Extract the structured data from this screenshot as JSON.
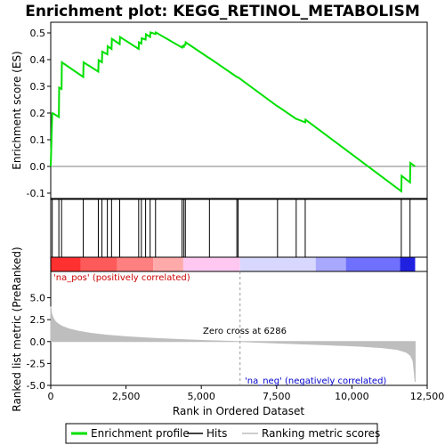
{
  "chart_data": {
    "type": "line",
    "title": "Enrichment plot: KEGG_RETINOL_METABOLISM",
    "xlabel": "Rank in Ordered Dataset",
    "ylabel_top": "Enrichment score (ES)",
    "ylabel_bottom": "Ranked list metric (PreRanked)",
    "xlim": [
      0,
      12500
    ],
    "x_ticks": [
      "0",
      "2,500",
      "5,000",
      "7,500",
      "10,000",
      "12,500"
    ],
    "x_tick_values": [
      0,
      2500,
      5000,
      7500,
      10000,
      12500
    ],
    "es_ylim": [
      -0.12,
      0.54
    ],
    "es_ticks": [
      "-0.1",
      "0.0",
      "0.1",
      "0.2",
      "0.3",
      "0.4",
      "0.5"
    ],
    "es_tick_values": [
      -0.1,
      0.0,
      0.1,
      0.2,
      0.3,
      0.4,
      0.5
    ],
    "metric_ylim": [
      -5,
      8
    ],
    "metric_ticks": [
      "-5.0",
      "-2.5",
      "0.0",
      "2.5",
      "5.0"
    ],
    "metric_tick_values": [
      -5,
      -2.5,
      0,
      2.5,
      5
    ],
    "n_genes": 12100,
    "enrichment_profile": {
      "name": "Enrichment profile",
      "color": "#00e000",
      "x": [
        0,
        50,
        60,
        270,
        280,
        360,
        370,
        1080,
        1090,
        1580,
        1590,
        1700,
        1710,
        1880,
        1890,
        2020,
        2030,
        2290,
        2300,
        2920,
        2930,
        3010,
        3020,
        3150,
        3160,
        3300,
        3310,
        3480,
        3490,
        4360,
        4370,
        4420,
        4430,
        4470,
        4480,
        5270,
        5280,
        6180,
        6190,
        6220,
        6230,
        7530,
        7540,
        8150,
        8160,
        8450,
        8460,
        11640,
        11650,
        11930,
        11940,
        12100
      ],
      "y": [
        0.0,
        0.198,
        0.2,
        0.185,
        0.295,
        0.29,
        0.39,
        0.335,
        0.39,
        0.355,
        0.398,
        0.39,
        0.43,
        0.42,
        0.45,
        0.44,
        0.478,
        0.458,
        0.485,
        0.44,
        0.465,
        0.46,
        0.48,
        0.475,
        0.495,
        0.485,
        0.502,
        0.496,
        0.502,
        0.445,
        0.45,
        0.448,
        0.455,
        0.455,
        0.465,
        0.405,
        0.405,
        0.335,
        0.335,
        0.333,
        0.333,
        0.225,
        0.225,
        0.178,
        0.178,
        0.165,
        0.175,
        -0.093,
        -0.035,
        -0.06,
        0.013,
        0.0
      ]
    },
    "hits": {
      "name": "Hits",
      "color": "#000000",
      "positions": [
        50,
        270,
        360,
        1080,
        1580,
        1700,
        1880,
        2020,
        2290,
        2920,
        3010,
        3150,
        3300,
        3480,
        4360,
        4420,
        4470,
        5270,
        6180,
        6220,
        7530,
        8150,
        8450,
        11640,
        11930
      ]
    },
    "ranking_metric": {
      "name": "Ranking metric scores",
      "color": "#bebebe",
      "x": [
        0,
        30,
        80,
        150,
        250,
        400,
        600,
        900,
        1300,
        1800,
        2500,
        3300,
        4200,
        5200,
        6286,
        7200,
        8200,
        9200,
        10200,
        11000,
        11500,
        11800,
        11950,
        12030,
        12070,
        12100
      ],
      "y": [
        4.0,
        3.2,
        2.7,
        2.3,
        2.0,
        1.7,
        1.45,
        1.2,
        0.95,
        0.75,
        0.55,
        0.38,
        0.24,
        0.1,
        0.0,
        -0.12,
        -0.25,
        -0.38,
        -0.52,
        -0.7,
        -0.9,
        -1.2,
        -1.6,
        -2.2,
        -3.5,
        -4.6
      ]
    },
    "heatmap_colors": [
      "#ff3030",
      "#ff5a5a",
      "#ff8080",
      "#ffaaaa",
      "#ffc8f0",
      "#d8d8ff",
      "#a8a8ff",
      "#7070ff",
      "#2020e0"
    ],
    "heatmap_bounds": [
      0,
      1000,
      2200,
      3400,
      4400,
      6286,
      8800,
      9800,
      11600,
      12100
    ],
    "annotations": {
      "pos_label": "'na_pos' (positively correlated)",
      "neg_label": "'na_neg' (negatively correlated)",
      "zero_cross": "Zero cross at 6286",
      "zero_cross_rank": 6286,
      "pos_color": "#cc0000",
      "neg_color": "#0000cc"
    },
    "legend": [
      {
        "label": "Enrichment profile",
        "color": "#00e000"
      },
      {
        "label": "Hits",
        "color": "#000000"
      },
      {
        "label": "Ranking metric scores",
        "color": "#bebebe"
      }
    ]
  }
}
